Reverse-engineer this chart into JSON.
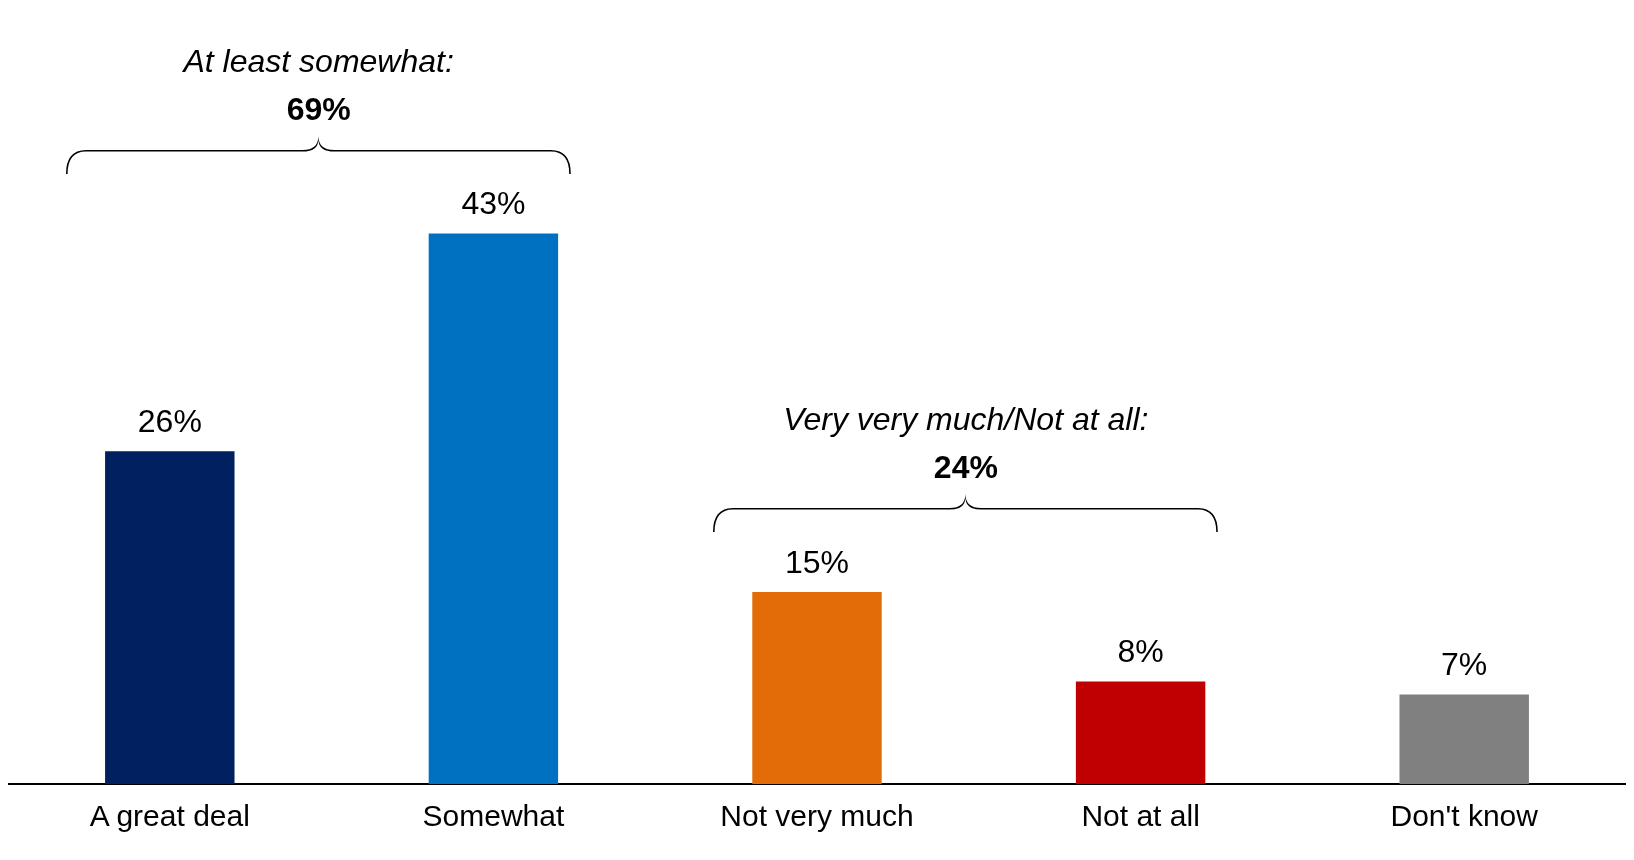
{
  "chart_data": {
    "type": "bar",
    "categories": [
      "A great deal",
      "Somewhat",
      "Not very much",
      "Not at all",
      "Don't know"
    ],
    "values": [
      26,
      43,
      15,
      8,
      7
    ],
    "colors": [
      "#002060",
      "#0070c0",
      "#e36c09",
      "#c00000",
      "#808080"
    ],
    "value_labels": [
      "26%",
      "43%",
      "15%",
      "8%",
      "7%"
    ],
    "grid": false,
    "legend": false,
    "annotations": [
      "At least somewhat:\n69%",
      "Very very much/Not at all:\n24%"
    ]
  }
}
